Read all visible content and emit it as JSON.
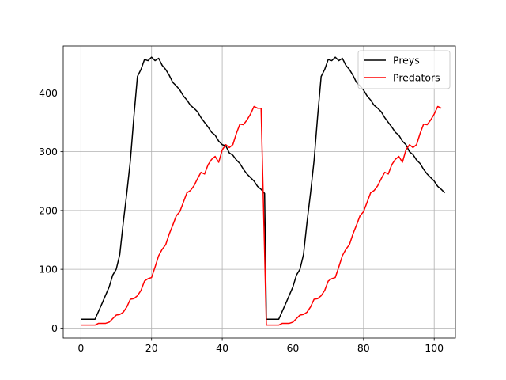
{
  "chart_data": {
    "type": "line",
    "title": "",
    "xlabel": "",
    "ylabel": "",
    "xlim": [
      -5,
      106
    ],
    "ylim": [
      -17,
      480
    ],
    "xticks": [
      0,
      20,
      40,
      60,
      80,
      100
    ],
    "yticks": [
      0,
      100,
      200,
      300,
      400
    ],
    "grid": true,
    "legend_position": "top-right",
    "series": [
      {
        "name": "Preys",
        "color": "#000000",
        "points": [
          [
            0,
            15
          ],
          [
            4,
            15
          ],
          [
            6,
            42
          ],
          [
            8,
            70
          ],
          [
            9,
            90
          ],
          [
            10,
            100
          ],
          [
            11,
            125
          ],
          [
            12,
            180
          ],
          [
            13,
            230
          ],
          [
            14,
            285
          ],
          [
            15,
            360
          ],
          [
            16,
            428
          ],
          [
            17,
            440
          ],
          [
            18,
            457
          ],
          [
            19,
            455
          ],
          [
            20,
            461
          ],
          [
            21,
            455
          ],
          [
            22,
            459
          ],
          [
            23,
            447
          ],
          [
            24,
            440
          ],
          [
            25,
            430
          ],
          [
            26,
            418
          ],
          [
            27,
            412
          ],
          [
            28,
            405
          ],
          [
            29,
            395
          ],
          [
            30,
            388
          ],
          [
            31,
            379
          ],
          [
            32,
            374
          ],
          [
            33,
            368
          ],
          [
            34,
            358
          ],
          [
            35,
            350
          ],
          [
            36,
            342
          ],
          [
            37,
            333
          ],
          [
            38,
            328
          ],
          [
            39,
            318
          ],
          [
            40,
            312
          ],
          [
            41,
            310
          ],
          [
            42,
            298
          ],
          [
            43,
            294
          ],
          [
            44,
            286
          ],
          [
            45,
            280
          ],
          [
            46,
            270
          ],
          [
            47,
            262
          ],
          [
            48,
            256
          ],
          [
            49,
            250
          ],
          [
            50,
            241
          ],
          [
            51,
            236
          ],
          [
            52,
            229
          ],
          [
            52.5,
            15
          ],
          [
            56,
            15
          ],
          [
            58,
            42
          ],
          [
            60,
            70
          ],
          [
            61,
            90
          ],
          [
            62,
            100
          ],
          [
            63,
            125
          ],
          [
            64,
            180
          ],
          [
            65,
            230
          ],
          [
            66,
            285
          ],
          [
            67,
            360
          ],
          [
            68,
            428
          ],
          [
            69,
            440
          ],
          [
            70,
            457
          ],
          [
            71,
            455
          ],
          [
            72,
            461
          ],
          [
            73,
            455
          ],
          [
            74,
            459
          ],
          [
            75,
            447
          ],
          [
            76,
            440
          ],
          [
            77,
            430
          ],
          [
            78,
            418
          ],
          [
            79,
            412
          ],
          [
            80,
            405
          ],
          [
            81,
            395
          ],
          [
            82,
            388
          ],
          [
            83,
            379
          ],
          [
            84,
            374
          ],
          [
            85,
            368
          ],
          [
            86,
            358
          ],
          [
            87,
            350
          ],
          [
            88,
            342
          ],
          [
            89,
            333
          ],
          [
            90,
            328
          ],
          [
            91,
            318
          ],
          [
            92,
            312
          ],
          [
            93,
            300
          ],
          [
            94,
            295
          ],
          [
            95,
            286
          ],
          [
            96,
            280
          ],
          [
            97,
            270
          ],
          [
            98,
            262
          ],
          [
            99,
            256
          ],
          [
            100,
            250
          ],
          [
            101,
            241
          ],
          [
            102,
            236
          ],
          [
            103,
            230
          ]
        ]
      },
      {
        "name": "Predators",
        "color": "#ff0000",
        "points": [
          [
            0,
            5
          ],
          [
            4,
            5
          ],
          [
            5,
            8
          ],
          [
            7,
            8
          ],
          [
            8,
            10
          ],
          [
            9,
            16
          ],
          [
            10,
            22
          ],
          [
            11,
            23
          ],
          [
            12,
            27
          ],
          [
            13,
            36
          ],
          [
            14,
            49
          ],
          [
            15,
            50
          ],
          [
            16,
            55
          ],
          [
            17,
            64
          ],
          [
            18,
            80
          ],
          [
            19,
            84
          ],
          [
            20,
            86
          ],
          [
            21,
            104
          ],
          [
            22,
            123
          ],
          [
            23,
            134
          ],
          [
            24,
            142
          ],
          [
            25,
            160
          ],
          [
            26,
            175
          ],
          [
            27,
            191
          ],
          [
            28,
            198
          ],
          [
            29,
            214
          ],
          [
            30,
            230
          ],
          [
            31,
            234
          ],
          [
            32,
            242
          ],
          [
            33,
            254
          ],
          [
            34,
            265
          ],
          [
            35,
            262
          ],
          [
            36,
            278
          ],
          [
            37,
            287
          ],
          [
            38,
            292
          ],
          [
            39,
            282
          ],
          [
            40,
            303
          ],
          [
            41,
            312
          ],
          [
            42,
            307
          ],
          [
            43,
            312
          ],
          [
            44,
            331
          ],
          [
            45,
            347
          ],
          [
            46,
            346
          ],
          [
            47,
            354
          ],
          [
            48,
            364
          ],
          [
            49,
            377
          ],
          [
            50,
            374
          ],
          [
            51,
            374
          ],
          [
            52.5,
            5
          ],
          [
            56,
            5
          ],
          [
            57,
            8
          ],
          [
            59,
            8
          ],
          [
            60,
            10
          ],
          [
            61,
            16
          ],
          [
            62,
            22
          ],
          [
            63,
            23
          ],
          [
            64,
            27
          ],
          [
            65,
            36
          ],
          [
            66,
            49
          ],
          [
            67,
            50
          ],
          [
            68,
            55
          ],
          [
            69,
            64
          ],
          [
            70,
            80
          ],
          [
            71,
            84
          ],
          [
            72,
            86
          ],
          [
            73,
            104
          ],
          [
            74,
            123
          ],
          [
            75,
            134
          ],
          [
            76,
            142
          ],
          [
            77,
            160
          ],
          [
            78,
            175
          ],
          [
            79,
            191
          ],
          [
            80,
            198
          ],
          [
            81,
            214
          ],
          [
            82,
            230
          ],
          [
            83,
            234
          ],
          [
            84,
            242
          ],
          [
            85,
            254
          ],
          [
            86,
            265
          ],
          [
            87,
            262
          ],
          [
            88,
            278
          ],
          [
            89,
            287
          ],
          [
            90,
            292
          ],
          [
            91,
            282
          ],
          [
            92,
            303
          ],
          [
            93,
            312
          ],
          [
            94,
            307
          ],
          [
            95,
            312
          ],
          [
            96,
            331
          ],
          [
            97,
            347
          ],
          [
            98,
            346
          ],
          [
            99,
            354
          ],
          [
            100,
            364
          ],
          [
            101,
            377
          ],
          [
            102,
            374
          ]
        ]
      }
    ]
  }
}
